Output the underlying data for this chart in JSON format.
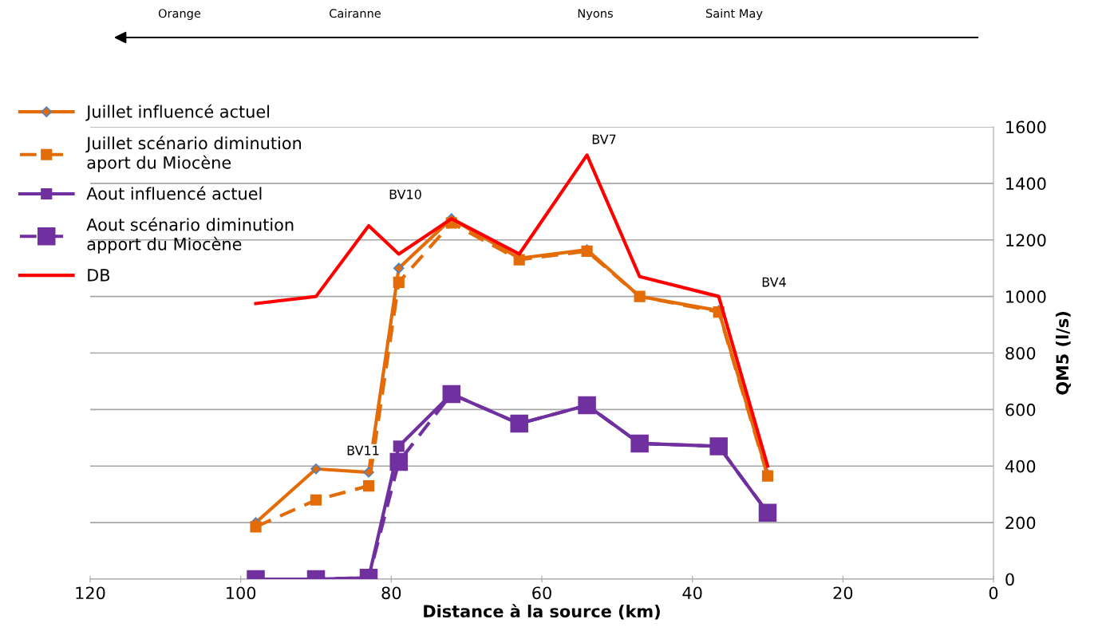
{
  "chart_data": {
    "type": "line",
    "xlabel": "Distance à la source (km)",
    "ylabel": "QM5 (l/s)",
    "x": [
      98,
      90,
      83,
      79,
      72,
      63,
      54,
      47,
      36.5,
      30
    ],
    "series": [
      {
        "name": "Juillet influencé actuel",
        "color": "#e36c09",
        "marker": "diamond",
        "line_style": "solid",
        "values": [
          200,
          390,
          378,
          1100,
          1275,
          1135,
          1165,
          1000,
          950,
          370
        ]
      },
      {
        "name": "Juillet scénario diminution\naport du Miocène",
        "color": "#e36c09",
        "marker": "square",
        "line_style": "dashed",
        "values": [
          185,
          280,
          330,
          1050,
          1260,
          1130,
          1160,
          1000,
          945,
          365
        ]
      },
      {
        "name": "Aout influencé actuel",
        "color": "#7030a0",
        "marker": "square",
        "line_style": "solid",
        "values": [
          0,
          0,
          5,
          470,
          655,
          550,
          615,
          480,
          470,
          235
        ]
      },
      {
        "name": "Aout scénario diminution\napport du Miocène",
        "color": "#7030a0",
        "marker": "square",
        "line_style": "dashed",
        "values": [
          0,
          0,
          5,
          415,
          655,
          550,
          615,
          480,
          470,
          235
        ]
      },
      {
        "name": "DB",
        "color": "#ff0000",
        "marker": "none",
        "line_style": "solid",
        "values": [
          975,
          1000,
          1250,
          1150,
          1275,
          1150,
          1500,
          1070,
          1000,
          400
        ]
      }
    ],
    "xlim": [
      120,
      0
    ],
    "xticks": [
      120,
      100,
      80,
      60,
      40,
      20,
      0
    ],
    "ylim": [
      0,
      1600
    ],
    "yticks": [
      0,
      200,
      400,
      600,
      800,
      1000,
      1200,
      1400,
      1600
    ],
    "grid": "y",
    "legend": "top left",
    "annotations": [
      "BV10",
      "BV11",
      "BV7",
      "BV4",
      "Orange",
      "Cairanne",
      "Nyons",
      "Saint May"
    ]
  }
}
